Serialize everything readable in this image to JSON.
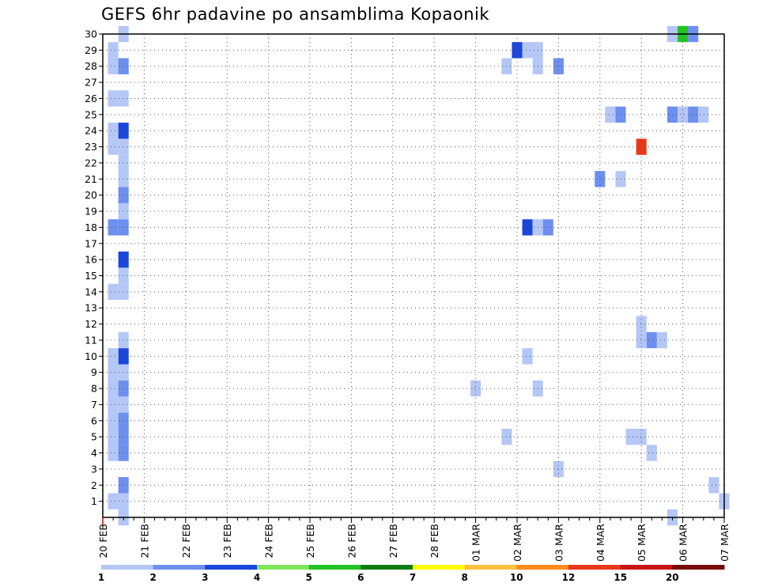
{
  "chart_data": {
    "type": "heatmap",
    "title": "GEFS 6hr padavine po ansamblima Kopaonik",
    "xlabel": "",
    "ylabel": "",
    "x_tick_labels": [
      "20 FEB",
      "21 FEB",
      "22 FEB",
      "23 FEB",
      "24 FEB",
      "25 FEB",
      "26 FEB",
      "27 FEB",
      "28 FEB",
      "01 MAR",
      "02 MAR",
      "03 MAR",
      "04 MAR",
      "05 MAR",
      "06 MAR",
      "07 MAR"
    ],
    "y_tick_labels": [
      "1",
      "2",
      "3",
      "4",
      "5",
      "6",
      "7",
      "8",
      "9",
      "10",
      "11",
      "12",
      "13",
      "14",
      "15",
      "16",
      "17",
      "18",
      "19",
      "20",
      "21",
      "22",
      "23",
      "24",
      "25",
      "26",
      "27",
      "28",
      "29",
      "30"
    ],
    "xlim_days": [
      0,
      15
    ],
    "ylim": [
      0,
      30
    ],
    "x_step_days": 0.25,
    "grid": true,
    "legend": {
      "placement": "bottom",
      "levels": [
        "1",
        "2",
        "3",
        "4",
        "5",
        "6",
        "7",
        "8",
        "10",
        "12",
        "15",
        "20"
      ],
      "colors": [
        "#b4c7f6",
        "#6d8ff0",
        "#1a46dc",
        "#7fe65a",
        "#22c322",
        "#0d7d0d",
        "#ffff00",
        "#ffc040",
        "#ff8c1a",
        "#e8381a",
        "#c81414",
        "#780a0a"
      ]
    },
    "cells": [
      {
        "day": 0.25,
        "member": 1,
        "level": 0
      },
      {
        "day": 0.5,
        "member": 1,
        "level": 0
      },
      {
        "day": 0.5,
        "member": 0,
        "level": 0
      },
      {
        "day": 0.5,
        "member": 2,
        "level": 1
      },
      {
        "day": 0.25,
        "member": 4,
        "level": 0
      },
      {
        "day": 0.5,
        "member": 4,
        "level": 1
      },
      {
        "day": 0.5,
        "member": 5,
        "level": 1
      },
      {
        "day": 0.25,
        "member": 5,
        "level": 0
      },
      {
        "day": 0.25,
        "member": 6,
        "level": 0
      },
      {
        "day": 0.5,
        "member": 6,
        "level": 1
      },
      {
        "day": 0.25,
        "member": 7,
        "level": 0
      },
      {
        "day": 0.5,
        "member": 7,
        "level": 0
      },
      {
        "day": 0.25,
        "member": 8,
        "level": 0
      },
      {
        "day": 0.5,
        "member": 8,
        "level": 1
      },
      {
        "day": 0.25,
        "member": 9,
        "level": 0
      },
      {
        "day": 0.5,
        "member": 9,
        "level": 0
      },
      {
        "day": 0.5,
        "member": 10,
        "level": 2
      },
      {
        "day": 0.25,
        "member": 10,
        "level": 0
      },
      {
        "day": 0.5,
        "member": 11,
        "level": 0
      },
      {
        "day": 0.25,
        "member": 14,
        "level": 0
      },
      {
        "day": 0.5,
        "member": 14,
        "level": 0
      },
      {
        "day": 0.5,
        "member": 15,
        "level": 0
      },
      {
        "day": 0.5,
        "member": 16,
        "level": 2
      },
      {
        "day": 0.25,
        "member": 18,
        "level": 1
      },
      {
        "day": 0.5,
        "member": 18,
        "level": 1
      },
      {
        "day": 0.5,
        "member": 19,
        "level": 0
      },
      {
        "day": 0.5,
        "member": 20,
        "level": 1
      },
      {
        "day": 0.5,
        "member": 21,
        "level": 0
      },
      {
        "day": 0.5,
        "member": 22,
        "level": 0
      },
      {
        "day": 0.25,
        "member": 23,
        "level": 0
      },
      {
        "day": 0.5,
        "member": 23,
        "level": 0
      },
      {
        "day": 0.25,
        "member": 24,
        "level": 0
      },
      {
        "day": 0.5,
        "member": 24,
        "level": 2
      },
      {
        "day": 0.25,
        "member": 26,
        "level": 0
      },
      {
        "day": 0.5,
        "member": 26,
        "level": 0
      },
      {
        "day": 0.25,
        "member": 28,
        "level": 0
      },
      {
        "day": 0.5,
        "member": 28,
        "level": 1
      },
      {
        "day": 0.25,
        "member": 29,
        "level": 0
      },
      {
        "day": 0.5,
        "member": 30,
        "level": 0
      },
      {
        "day": 9.0,
        "member": 8,
        "level": 0
      },
      {
        "day": 9.75,
        "member": 5,
        "level": 0
      },
      {
        "day": 9.75,
        "member": 28,
        "level": 0
      },
      {
        "day": 10.0,
        "member": 29,
        "level": 2
      },
      {
        "day": 10.25,
        "member": 29,
        "level": 0
      },
      {
        "day": 10.5,
        "member": 29,
        "level": 0
      },
      {
        "day": 10.5,
        "member": 28,
        "level": 0
      },
      {
        "day": 10.25,
        "member": 10,
        "level": 0
      },
      {
        "day": 10.5,
        "member": 8,
        "level": 0
      },
      {
        "day": 10.25,
        "member": 18,
        "level": 2
      },
      {
        "day": 10.5,
        "member": 18,
        "level": 0
      },
      {
        "day": 10.75,
        "member": 18,
        "level": 1
      },
      {
        "day": 11.0,
        "member": 28,
        "level": 1
      },
      {
        "day": 11.0,
        "member": 3,
        "level": 0
      },
      {
        "day": 12.0,
        "member": 21,
        "level": 1
      },
      {
        "day": 12.5,
        "member": 21,
        "level": 0
      },
      {
        "day": 12.25,
        "member": 25,
        "level": 0
      },
      {
        "day": 12.5,
        "member": 25,
        "level": 1
      },
      {
        "day": 13.0,
        "member": 23,
        "level": 9
      },
      {
        "day": 13.0,
        "member": 12,
        "level": 0
      },
      {
        "day": 13.0,
        "member": 11,
        "level": 0
      },
      {
        "day": 13.25,
        "member": 11,
        "level": 1
      },
      {
        "day": 13.5,
        "member": 11,
        "level": 0
      },
      {
        "day": 12.75,
        "member": 5,
        "level": 0
      },
      {
        "day": 13.0,
        "member": 5,
        "level": 0
      },
      {
        "day": 13.25,
        "member": 4,
        "level": 0
      },
      {
        "day": 13.75,
        "member": 0,
        "level": 0
      },
      {
        "day": 13.75,
        "member": 25,
        "level": 1
      },
      {
        "day": 14.0,
        "member": 25,
        "level": 0
      },
      {
        "day": 14.25,
        "member": 25,
        "level": 1
      },
      {
        "day": 14.5,
        "member": 25,
        "level": 0
      },
      {
        "day": 13.75,
        "member": 30,
        "level": 0
      },
      {
        "day": 14.0,
        "member": 30,
        "level": 4
      },
      {
        "day": 14.25,
        "member": 30,
        "level": 1
      },
      {
        "day": 14.75,
        "member": 2,
        "level": 0
      },
      {
        "day": 15.0,
        "member": 1,
        "level": 0
      }
    ]
  }
}
